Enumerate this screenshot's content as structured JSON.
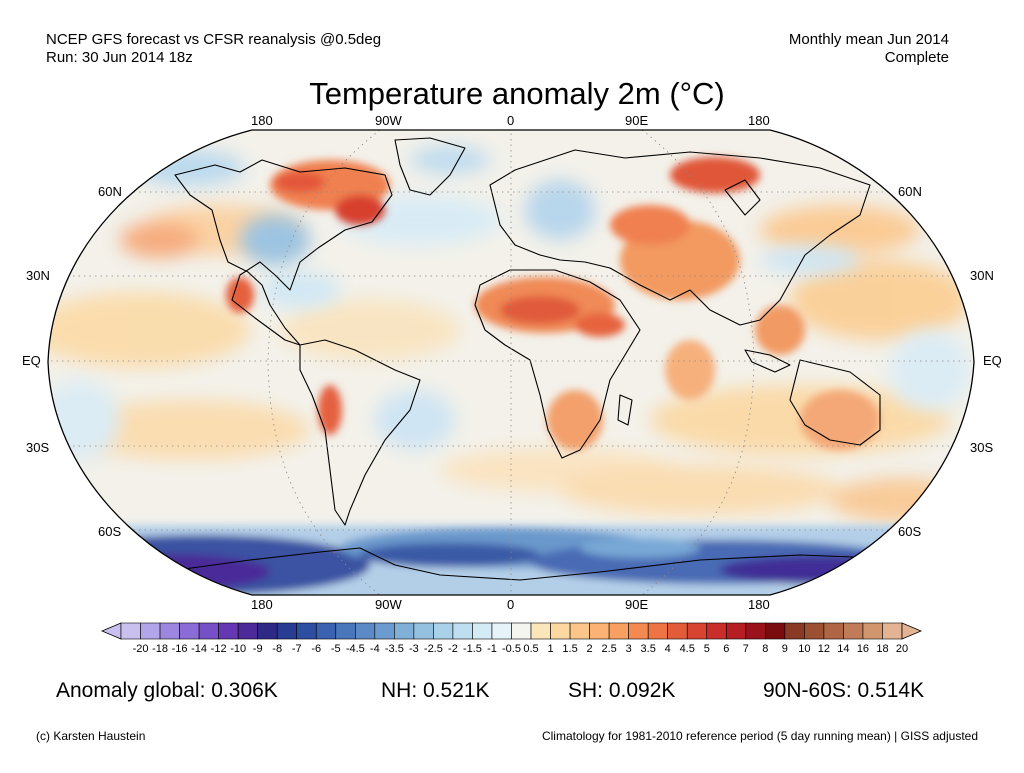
{
  "header": {
    "left_line1": "NCEP GFS forecast vs CFSR reanalysis @0.5deg",
    "left_line2": "Run: 30 Jun 2014 18z",
    "right_line1": "Monthly mean Jun 2014",
    "right_line2": "Complete"
  },
  "title": "Temperature anomaly 2m (°C)",
  "map": {
    "projection": "Robinson",
    "lon_labels_top": [
      "180",
      "90W",
      "0",
      "90E",
      "180"
    ],
    "lon_labels_bottom": [
      "180",
      "90W",
      "0",
      "90E",
      "180"
    ],
    "lat_labels_left": [
      "60N",
      "30N",
      "EQ",
      "30S",
      "60S"
    ],
    "lat_labels_right": [
      "60N",
      "30N",
      "EQ",
      "30S",
      "60S"
    ],
    "colors": {
      "warm_strong": "#d2322a",
      "warm_mid": "#f4844e",
      "warm_light": "#fbd49a",
      "neutral": "#f4f4f0",
      "cool_light": "#cfe6f4",
      "cool_mid": "#7ab0d8",
      "cool_strong": "#3050a0",
      "cool_extreme": "#4a2a9a"
    }
  },
  "colorbar": {
    "tick_labels": [
      "-20",
      "-18",
      "-16",
      "-14",
      "-12",
      "-10",
      "-9",
      "-8",
      "-7",
      "-6",
      "-5",
      "-4.5",
      "-4",
      "-3.5",
      "-3",
      "-2.5",
      "-2",
      "-1.5",
      "-1",
      "-0.5",
      "0.5",
      "1",
      "1.5",
      "2",
      "2.5",
      "3",
      "3.5",
      "4",
      "4.5",
      "5",
      "6",
      "7",
      "8",
      "9",
      "10",
      "12",
      "14",
      "16",
      "18",
      "20"
    ],
    "colors": [
      "#c9c0f0",
      "#b3a5ea",
      "#9c86e0",
      "#8b6bd6",
      "#7650c6",
      "#6438b2",
      "#4c2a9a",
      "#2c2a86",
      "#283c94",
      "#2e4ea2",
      "#3a62b0",
      "#4a76bc",
      "#5c8ac6",
      "#6c9ccf",
      "#80afd8",
      "#95c1e1",
      "#a9d1e9",
      "#bddff0",
      "#d2ebf5",
      "#e6f3f8",
      "#f5f5f0",
      "#fbe6bc",
      "#fdd7a0",
      "#fcc58a",
      "#fbb274",
      "#f89f62",
      "#f48a52",
      "#ee7446",
      "#e35c3a",
      "#d84432",
      "#c82f2a",
      "#b51e22",
      "#9a121a",
      "#7a0c10",
      "#8a3a24",
      "#9c5032",
      "#ae6644",
      "#c07c58",
      "#d2966e",
      "#e4b394"
    ]
  },
  "stats": {
    "global": "Anomaly global: 0.306K",
    "nh": "NH: 0.521K",
    "sh": "SH: 0.092K",
    "arctic": "90N-60S: 0.514K"
  },
  "footer": {
    "credit": "(c) Karsten Haustein",
    "note": "Climatology for 1981-2010 reference period (5 day running mean) | GISS adjusted"
  }
}
